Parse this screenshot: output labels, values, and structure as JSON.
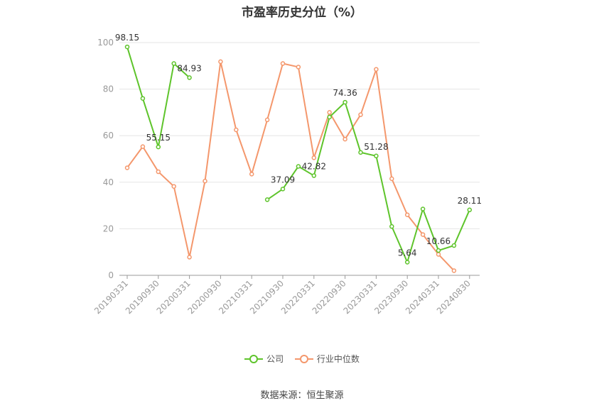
{
  "title": "市盈率历史分位（%）",
  "source": "数据来源：恒生聚源",
  "colors": {
    "company": "#5ec42b",
    "industry": "#f4976c",
    "grid": "#e6e6e6",
    "axis": "#999999"
  },
  "chart_data": {
    "type": "line",
    "title": "市盈率历史分位（%）",
    "ylim": [
      0,
      100
    ],
    "y_ticks": [
      0,
      20,
      40,
      60,
      80,
      100
    ],
    "grid": true,
    "legend_position": "bottom",
    "x_tick_labels": [
      "20190331",
      "20190930",
      "20200331",
      "20200930",
      "20210331",
      "20210930",
      "20220331",
      "20220930",
      "20230331",
      "20230930",
      "20240331",
      "20240830"
    ],
    "categories": [
      "20190331",
      "20190630",
      "20190930",
      "20191231",
      "20200331",
      "20200630",
      "20200930",
      "20201231",
      "20210331",
      "20210630",
      "20210930",
      "20211231",
      "20220331",
      "20220630",
      "20220930",
      "20221231",
      "20230331",
      "20230630",
      "20230930",
      "20231231",
      "20240331",
      "20240630",
      "20240830"
    ],
    "series": [
      {
        "name": "公司",
        "color": "#5ec42b",
        "values": [
          98.15,
          76.0,
          55.15,
          91.0,
          84.93,
          null,
          null,
          null,
          null,
          32.5,
          37.09,
          46.8,
          42.82,
          68.0,
          74.36,
          52.8,
          51.28,
          21.0,
          5.64,
          28.5,
          10.66,
          12.8,
          28.11
        ]
      },
      {
        "name": "行业中位数",
        "color": "#f4976c",
        "values": [
          46.2,
          55.3,
          44.5,
          38.2,
          7.8,
          40.5,
          91.8,
          62.5,
          43.5,
          66.8,
          91.0,
          89.5,
          50.5,
          70.0,
          58.5,
          69.0,
          88.5,
          41.5,
          26.0,
          17.5,
          9.0,
          2.0,
          null
        ]
      }
    ],
    "labels": [
      {
        "series": 0,
        "index": 0,
        "text": "98.15"
      },
      {
        "series": 0,
        "index": 2,
        "text": "55.15"
      },
      {
        "series": 0,
        "index": 4,
        "text": "84.93"
      },
      {
        "series": 0,
        "index": 10,
        "text": "37.09"
      },
      {
        "series": 0,
        "index": 12,
        "text": "42.82"
      },
      {
        "series": 0,
        "index": 14,
        "text": "74.36"
      },
      {
        "series": 0,
        "index": 16,
        "text": "51.28"
      },
      {
        "series": 0,
        "index": 18,
        "text": "5.64"
      },
      {
        "series": 0,
        "index": 20,
        "text": "10.66"
      },
      {
        "series": 0,
        "index": 22,
        "text": "28.11"
      }
    ]
  }
}
